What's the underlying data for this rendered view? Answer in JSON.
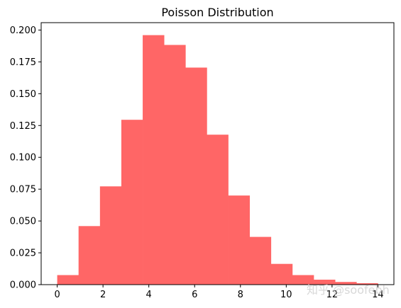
{
  "chart_data": {
    "type": "bar",
    "title": "Poisson Distribution",
    "xlabel": "",
    "ylabel": "",
    "bin_edges": [
      0,
      0.933,
      1.867,
      2.8,
      3.733,
      4.667,
      5.6,
      6.533,
      7.467,
      8.4,
      9.333,
      10.267,
      11.2,
      12.133,
      13.067,
      14.0
    ],
    "values": [
      0.0075,
      0.046,
      0.0772,
      0.1295,
      0.196,
      0.1883,
      0.1705,
      0.1178,
      0.07,
      0.0375,
      0.0163,
      0.0075,
      0.0039,
      0.0021,
      0.0011
    ],
    "color": "#ff6666",
    "xlim": [
      -0.7,
      14.7
    ],
    "ylim": [
      0,
      0.2058
    ],
    "xticks": [
      0,
      2,
      4,
      6,
      8,
      10,
      12,
      14
    ],
    "xtick_labels": [
      "0",
      "2",
      "4",
      "6",
      "8",
      "10",
      "12",
      "14"
    ],
    "yticks": [
      0.0,
      0.025,
      0.05,
      0.075,
      0.1,
      0.125,
      0.15,
      0.175,
      0.2
    ],
    "ytick_labels": [
      "0.000",
      "0.025",
      "0.050",
      "0.075",
      "0.100",
      "0.125",
      "0.150",
      "0.175",
      "0.200"
    ],
    "grid": false,
    "legend": "none"
  },
  "watermark": "知乎 @soofebh"
}
